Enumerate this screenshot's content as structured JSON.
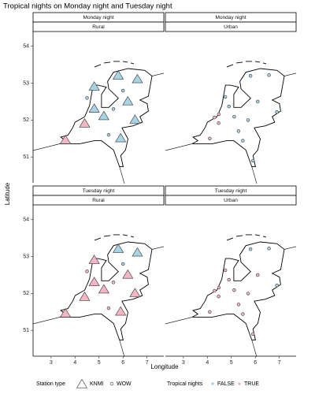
{
  "chart_data": {
    "type": "scatter",
    "title": "Tropical nights on Monday night and Tuesday night",
    "xlabel": "Longitude",
    "ylabel": "Latitude",
    "xlim": [
      2.25,
      7.7
    ],
    "ylim": [
      50.3,
      54.4
    ],
    "xticks": [
      3,
      4,
      5,
      6,
      7
    ],
    "yticks": [
      51,
      52,
      53,
      54
    ],
    "legend": {
      "station_title": "Station type",
      "station_types": [
        "KNMI",
        "WOW"
      ],
      "tropical_title": "Tropical nights",
      "tropical_labels": [
        "FALSE",
        "TRUE"
      ],
      "tropical_colors": [
        "#a8d5e5",
        "#f4b6c6"
      ]
    },
    "facets": [
      {
        "row": "Monday night",
        "col": "Rural",
        "x": [
          4.8,
          5.8,
          6.6,
          4.8,
          5.2,
          6.2,
          5.9,
          4.4,
          3.6,
          6.5,
          5.4,
          6.0,
          4.5,
          5.6
        ],
        "y": [
          52.9,
          53.2,
          53.1,
          52.3,
          52.1,
          52.5,
          51.5,
          51.9,
          51.45,
          52.0,
          51.6,
          52.8,
          52.6,
          52.3
        ],
        "station": [
          "KNMI",
          "KNMI",
          "KNMI",
          "KNMI",
          "KNMI",
          "KNMI",
          "KNMI",
          "KNMI",
          "KNMI",
          "KNMI",
          "WOW",
          "WOW",
          "WOW",
          "WOW"
        ],
        "tropical": [
          "FALSE",
          "FALSE",
          "FALSE",
          "FALSE",
          "FALSE",
          "FALSE",
          "FALSE",
          "TRUE",
          "TRUE",
          "FALSE",
          "FALSE",
          "FALSE",
          "FALSE",
          "FALSE"
        ]
      },
      {
        "row": "Monday night",
        "col": "Urban",
        "x": [
          4.9,
          4.48,
          4.3,
          4.47,
          5.12,
          5.48,
          5.7,
          6.9,
          6.57,
          5.8,
          4.75,
          5.3,
          6.1,
          4.1,
          5.9
        ],
        "y": [
          52.37,
          52.16,
          52.07,
          51.92,
          52.09,
          51.44,
          52.0,
          52.22,
          53.22,
          53.2,
          52.63,
          51.7,
          52.5,
          51.5,
          50.9
        ],
        "station": [
          "WOW",
          "WOW",
          "WOW",
          "WOW",
          "WOW",
          "WOW",
          "WOW",
          "WOW",
          "WOW",
          "WOW",
          "WOW",
          "WOW",
          "WOW",
          "WOW",
          "WOW"
        ],
        "tropical": [
          "FALSE",
          "TRUE",
          "TRUE",
          "TRUE",
          "FALSE",
          "FALSE",
          "FALSE",
          "FALSE",
          "FALSE",
          "FALSE",
          "FALSE",
          "FALSE",
          "FALSE",
          "TRUE",
          "FALSE"
        ]
      },
      {
        "row": "Tuesday night",
        "col": "Rural",
        "x": [
          4.8,
          5.8,
          6.6,
          4.8,
          5.2,
          6.2,
          5.9,
          4.4,
          3.6,
          6.5,
          5.4,
          6.0,
          4.5,
          5.6
        ],
        "y": [
          52.9,
          53.2,
          53.1,
          52.3,
          52.1,
          52.5,
          51.5,
          51.9,
          51.45,
          52.0,
          51.6,
          52.8,
          52.6,
          52.3
        ],
        "station": [
          "KNMI",
          "KNMI",
          "KNMI",
          "KNMI",
          "KNMI",
          "KNMI",
          "KNMI",
          "KNMI",
          "KNMI",
          "KNMI",
          "WOW",
          "WOW",
          "WOW",
          "WOW"
        ],
        "tropical": [
          "TRUE",
          "FALSE",
          "FALSE",
          "TRUE",
          "TRUE",
          "TRUE",
          "TRUE",
          "TRUE",
          "TRUE",
          "TRUE",
          "TRUE",
          "FALSE",
          "TRUE",
          "TRUE"
        ]
      },
      {
        "row": "Tuesday night",
        "col": "Urban",
        "x": [
          4.9,
          4.48,
          4.3,
          4.47,
          5.12,
          5.48,
          5.7,
          6.9,
          6.57,
          5.8,
          4.75,
          5.3,
          6.1,
          4.1,
          5.9
        ],
        "y": [
          52.37,
          52.16,
          52.07,
          51.92,
          52.09,
          51.44,
          52.0,
          52.22,
          53.22,
          53.2,
          52.63,
          51.7,
          52.5,
          51.5,
          50.9
        ],
        "station": [
          "WOW",
          "WOW",
          "WOW",
          "WOW",
          "WOW",
          "WOW",
          "WOW",
          "WOW",
          "WOW",
          "WOW",
          "WOW",
          "WOW",
          "WOW",
          "WOW",
          "WOW"
        ],
        "tropical": [
          "TRUE",
          "TRUE",
          "TRUE",
          "TRUE",
          "TRUE",
          "TRUE",
          "TRUE",
          "FALSE",
          "FALSE",
          "FALSE",
          "TRUE",
          "TRUE",
          "TRUE",
          "TRUE",
          "TRUE"
        ]
      }
    ]
  }
}
